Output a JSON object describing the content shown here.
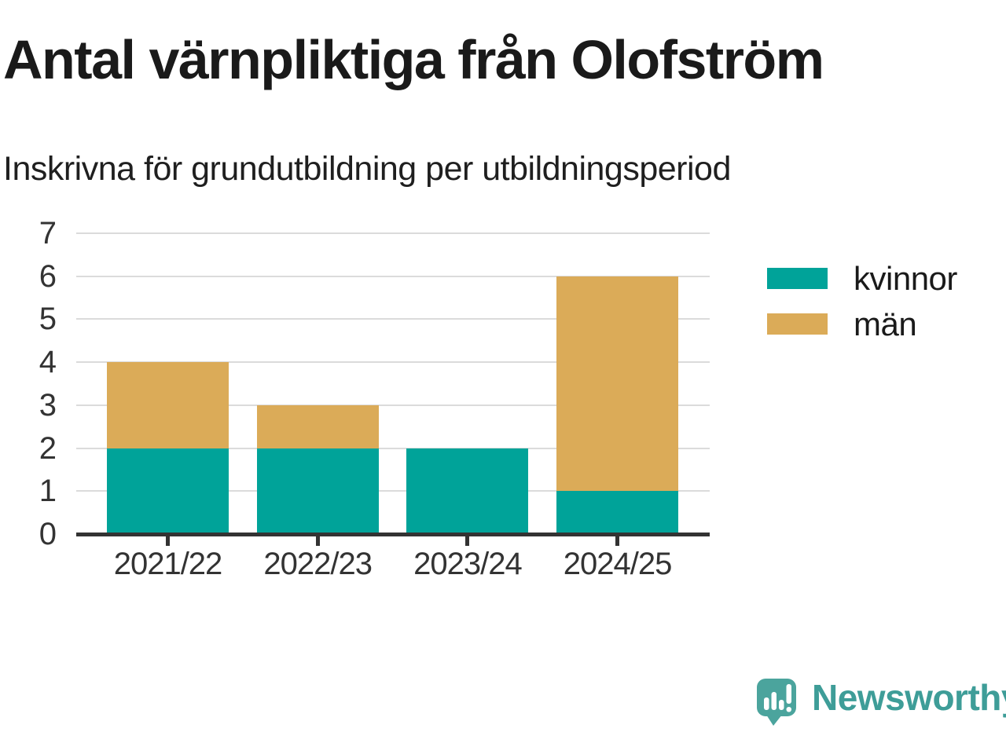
{
  "chart_data": {
    "type": "bar",
    "stacked": true,
    "title": "Antal värnpliktiga från Olofström",
    "subtitle": "Inskrivna för grundutbildning per utbildningsperiod",
    "categories": [
      "2021/22",
      "2022/23",
      "2023/24",
      "2024/25"
    ],
    "series": [
      {
        "name": "kvinnor",
        "color": "#00A399",
        "values": [
          2,
          2,
          2,
          1
        ]
      },
      {
        "name": "män",
        "color": "#DBAB58",
        "values": [
          2,
          1,
          0,
          5
        ]
      }
    ],
    "totals": [
      4,
      3,
      2,
      6
    ],
    "xlabel": "",
    "ylabel": "",
    "ylim": [
      0,
      7
    ],
    "yticks": [
      0,
      1,
      2,
      3,
      4,
      5,
      6,
      7
    ],
    "grid": true,
    "legend_position": "top-right",
    "colors": {
      "grid": "#DBDBDB",
      "axis": "#333333",
      "tick_text": "#333333",
      "title_text": "#1A1A1A"
    }
  },
  "footer": {
    "brand": "Newsworthy",
    "logo_icon": "bar-chart-speech-bubble-icon",
    "brand_color": "#3E9D98",
    "logo_color": "#4BA49D"
  }
}
